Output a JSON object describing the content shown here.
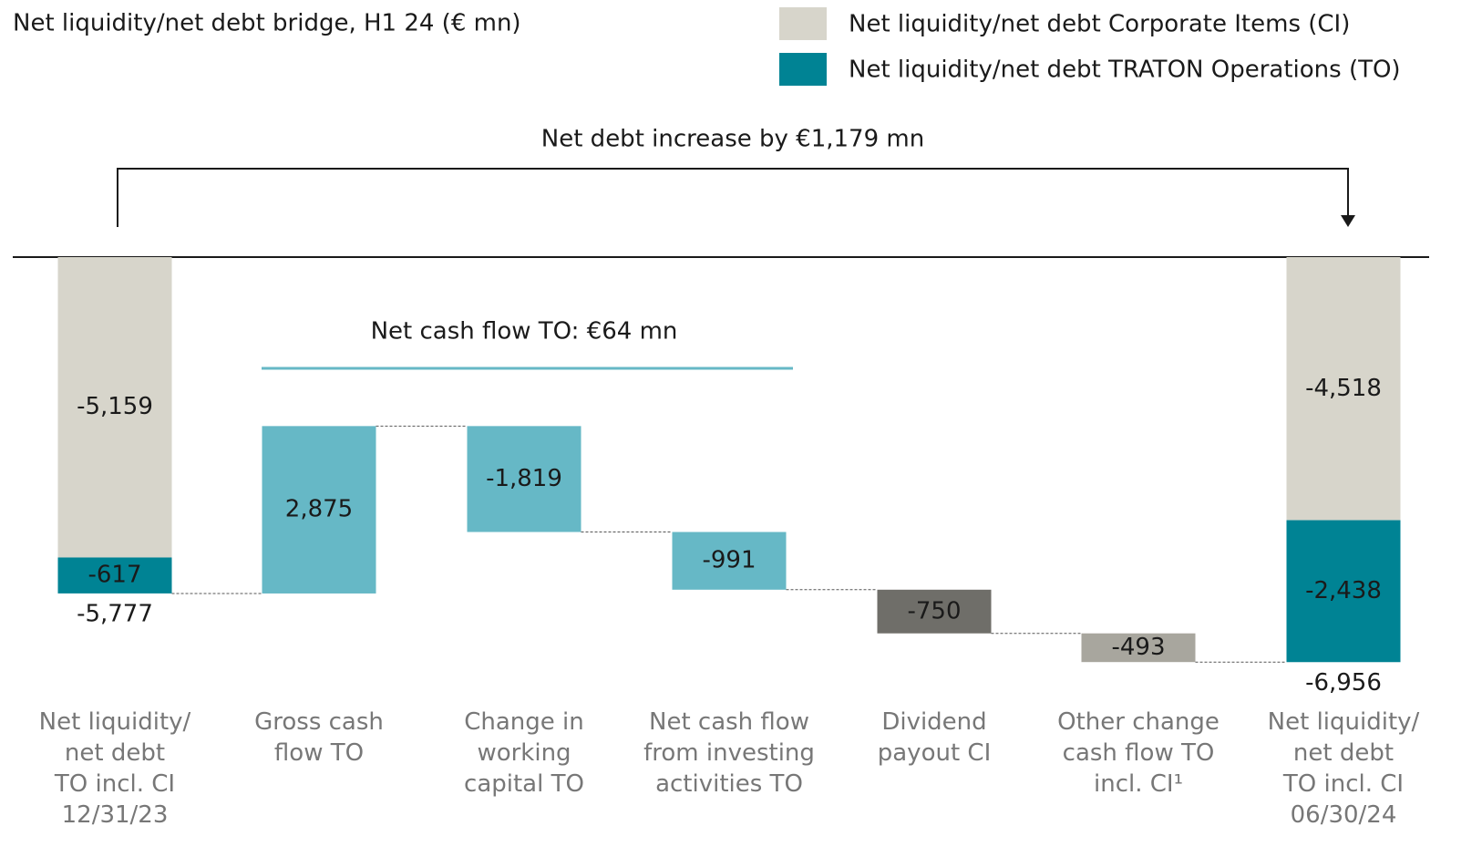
{
  "chart_data": {
    "type": "waterfall",
    "title": "Net liquidity/net debt bridge, H1 24 (€ mn)",
    "annotation": "Net debt increase by €1,179 mn",
    "bracket_label": "Net cash flow TO: €64 mn",
    "bracket_color": "#66b8c6",
    "series": [
      {
        "name": "Net liquidity/net debt Corporate Items (CI)",
        "color": "#d7d5cb",
        "text_color": "#1a1a1a"
      },
      {
        "name": "Net liquidity/net debt TRATON Operations (TO)",
        "color": "#008394",
        "text_color": "#ffffff"
      }
    ],
    "categories": [
      "Net liquidity/\nnet debt\nTO incl. CI\n12/31/23",
      "Gross cash\nflow TO",
      "Change in\nworking\ncapital TO",
      "Net cash flow\nfrom investing\nactivities TO",
      "Dividend\npayout CI",
      "Other change\ncash flow TO\nincl. CI¹",
      "Net liquidity/\nnet debt\nTO incl. CI\n06/30/24"
    ],
    "bars": [
      {
        "kind": "total",
        "segments": [
          {
            "series": 0,
            "value": -5159,
            "label": "-5,159"
          },
          {
            "series": 1,
            "value": -617,
            "label": "-617"
          }
        ],
        "total": -5777,
        "total_label": "-5,777"
      },
      {
        "kind": "delta",
        "value": 2875,
        "label": "2,875",
        "color": "#66b8c6",
        "text_color": "#1a1a1a"
      },
      {
        "kind": "delta",
        "value": -1819,
        "label": "-1,819",
        "color": "#66b8c6",
        "text_color": "#1a1a1a"
      },
      {
        "kind": "delta",
        "value": -991,
        "label": "-991",
        "color": "#66b8c6",
        "text_color": "#1a1a1a"
      },
      {
        "kind": "delta",
        "value": -750,
        "label": "-750",
        "color": "#6f6e69",
        "text_color": "#ffffff"
      },
      {
        "kind": "delta",
        "value": -493,
        "label": "-493",
        "color": "#a8a69e",
        "text_color": "#1a1a1a"
      },
      {
        "kind": "total",
        "segments": [
          {
            "series": 0,
            "value": -4518,
            "label": "-4,518"
          },
          {
            "series": 1,
            "value": -2438,
            "label": "-2,438"
          }
        ],
        "total": -6956,
        "total_label": "-6,956"
      }
    ],
    "ylim": [
      -7500,
      0
    ]
  }
}
